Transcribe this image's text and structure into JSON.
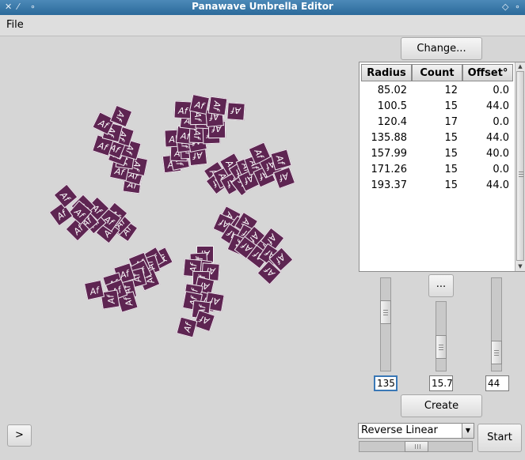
{
  "window": {
    "title": "Panawave Umbrella Editor"
  },
  "menu": {
    "file": "File"
  },
  "tile_glyph": "Af",
  "buttons": {
    "change": "Change...",
    "more": "...",
    "create": "Create",
    "start": "Start",
    "expand": ">"
  },
  "table": {
    "headers": [
      "Radius",
      "Count",
      "Offset°"
    ],
    "rows": [
      [
        "85.02",
        "12",
        "0.0"
      ],
      [
        "100.5",
        "15",
        "44.0"
      ],
      [
        "120.4",
        "17",
        "0.0"
      ],
      [
        "135.88",
        "15",
        "44.0"
      ],
      [
        "157.99",
        "15",
        "40.0"
      ],
      [
        "171.26",
        "15",
        "0.0"
      ],
      [
        "193.37",
        "15",
        "44.0"
      ]
    ]
  },
  "inputs": {
    "radius": "135",
    "count": "15.7",
    "offset": "44"
  },
  "dropdown": {
    "selected": "Reverse Linear"
  },
  "colors": {
    "tile": "#5e2552",
    "titlebar": "#3b78a8"
  }
}
